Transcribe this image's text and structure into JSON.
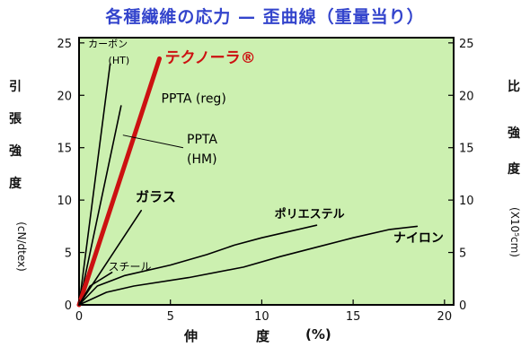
{
  "chart_data": {
    "type": "line",
    "title": "各種繊維の応力 — 歪曲線（重量当り）",
    "left_axis_label": [
      "引",
      "張",
      "強",
      "度"
    ],
    "left_axis_unit": "(cN/dtex)",
    "right_axis_label": [
      "比",
      "強",
      "度"
    ],
    "right_axis_unit": "(X10⁵cm)",
    "xlabel_chars": [
      "伸",
      "度",
      "(%)"
    ],
    "xlim": [
      0,
      20.5
    ],
    "ylim": [
      0,
      25.5
    ],
    "right_ylim": [
      0,
      25.5
    ],
    "x_ticks": [
      {
        "v": 0,
        "label": "0"
      },
      {
        "v": 5,
        "label": "5"
      },
      {
        "v": 10,
        "label": "10"
      },
      {
        "v": 15,
        "label": "15"
      },
      {
        "v": 20,
        "label": "20"
      }
    ],
    "y_ticks": [
      {
        "v": 0,
        "label": "0"
      },
      {
        "v": 5,
        "label": "5"
      },
      {
        "v": 10,
        "label": "10"
      },
      {
        "v": 15,
        "label": "15"
      },
      {
        "v": 20,
        "label": "20"
      },
      {
        "v": 25,
        "label": "25"
      }
    ],
    "right_ticks": [
      {
        "v": 0,
        "label": "0"
      },
      {
        "v": 5,
        "label": "5"
      },
      {
        "v": 10,
        "label": "10"
      },
      {
        "v": 15,
        "label": "15"
      },
      {
        "v": 20,
        "label": "20"
      },
      {
        "v": 25,
        "label": "25"
      }
    ],
    "grid": false,
    "background": "#ccf0b0",
    "series": [
      {
        "name": "カーボン (HT)",
        "color": "#000000",
        "width": 1.6,
        "points": [
          [
            0,
            0
          ],
          [
            1.7,
            23
          ]
        ]
      },
      {
        "name": "PPTA (reg)",
        "color": "#000000",
        "width": 1.6,
        "points": [
          [
            0,
            0
          ],
          [
            2.3,
            19
          ]
        ]
      },
      {
        "name": "PPTA (HM)",
        "color": "#000000",
        "width": 1.6,
        "points": [
          [
            0,
            0
          ],
          [
            3.3,
            17.5
          ]
        ]
      },
      {
        "name": "テクノーラ®",
        "color": "#cc1111",
        "width": 5,
        "points": [
          [
            0,
            0
          ],
          [
            4.4,
            23.5
          ]
        ]
      },
      {
        "name": "ガラス",
        "color": "#000000",
        "width": 1.6,
        "points": [
          [
            0,
            0
          ],
          [
            3.4,
            9
          ]
        ]
      },
      {
        "name": "スチール",
        "color": "#000000",
        "width": 1.6,
        "points": [
          [
            0,
            0
          ],
          [
            0.6,
            1.8
          ],
          [
            1.8,
            3.1
          ]
        ]
      },
      {
        "name": "ポリエステル",
        "color": "#000000",
        "width": 1.6,
        "points": [
          [
            0,
            0
          ],
          [
            1,
            1.8
          ],
          [
            2.5,
            2.8
          ],
          [
            5,
            3.8
          ],
          [
            7,
            4.8
          ],
          [
            8.5,
            5.7
          ],
          [
            10,
            6.4
          ],
          [
            11.5,
            7
          ],
          [
            13,
            7.6
          ]
        ]
      },
      {
        "name": "ナイロン",
        "color": "#000000",
        "width": 1.6,
        "points": [
          [
            0,
            0
          ],
          [
            1.5,
            1.2
          ],
          [
            3,
            1.8
          ],
          [
            6,
            2.6
          ],
          [
            9,
            3.6
          ],
          [
            11,
            4.6
          ],
          [
            13,
            5.5
          ],
          [
            15,
            6.4
          ],
          [
            17,
            7.2
          ],
          [
            18.5,
            7.5
          ]
        ]
      }
    ],
    "annotations": [
      {
        "name": "カーボン",
        "x": 0.5,
        "y": 24.6,
        "color": "#000000",
        "size": 11,
        "bold": false
      },
      {
        "name": "(HT)",
        "x": 1.6,
        "y": 23.0,
        "color": "#000000",
        "size": 11,
        "bold": false
      },
      {
        "name": "テクノーラ®",
        "x": 4.7,
        "y": 23.1,
        "color": "#cc1111",
        "size": 17,
        "bold": true
      },
      {
        "name": "PPTA (reg)",
        "x": 4.5,
        "y": 19.3,
        "color": "#000000",
        "size": 14,
        "bold": false
      },
      {
        "name": "PPTA",
        "x": 5.9,
        "y": 15.4,
        "color": "#000000",
        "size": 14,
        "bold": false
      },
      {
        "name": "(HM)",
        "x": 5.9,
        "y": 13.5,
        "color": "#000000",
        "size": 14,
        "bold": false
      },
      {
        "name": "ガラス",
        "x": 3.1,
        "y": 9.9,
        "color": "#000000",
        "size": 15,
        "bold": true
      },
      {
        "name": "ポリエステル",
        "x": 10.7,
        "y": 8.3,
        "color": "#000000",
        "size": 13,
        "bold": true
      },
      {
        "name": "スチール",
        "x": 1.6,
        "y": 3.3,
        "color": "#000000",
        "size": 12,
        "bold": false
      },
      {
        "name": "ナイロン",
        "x": 17.2,
        "y": 6.0,
        "color": "#000000",
        "size": 14,
        "bold": true
      }
    ]
  }
}
